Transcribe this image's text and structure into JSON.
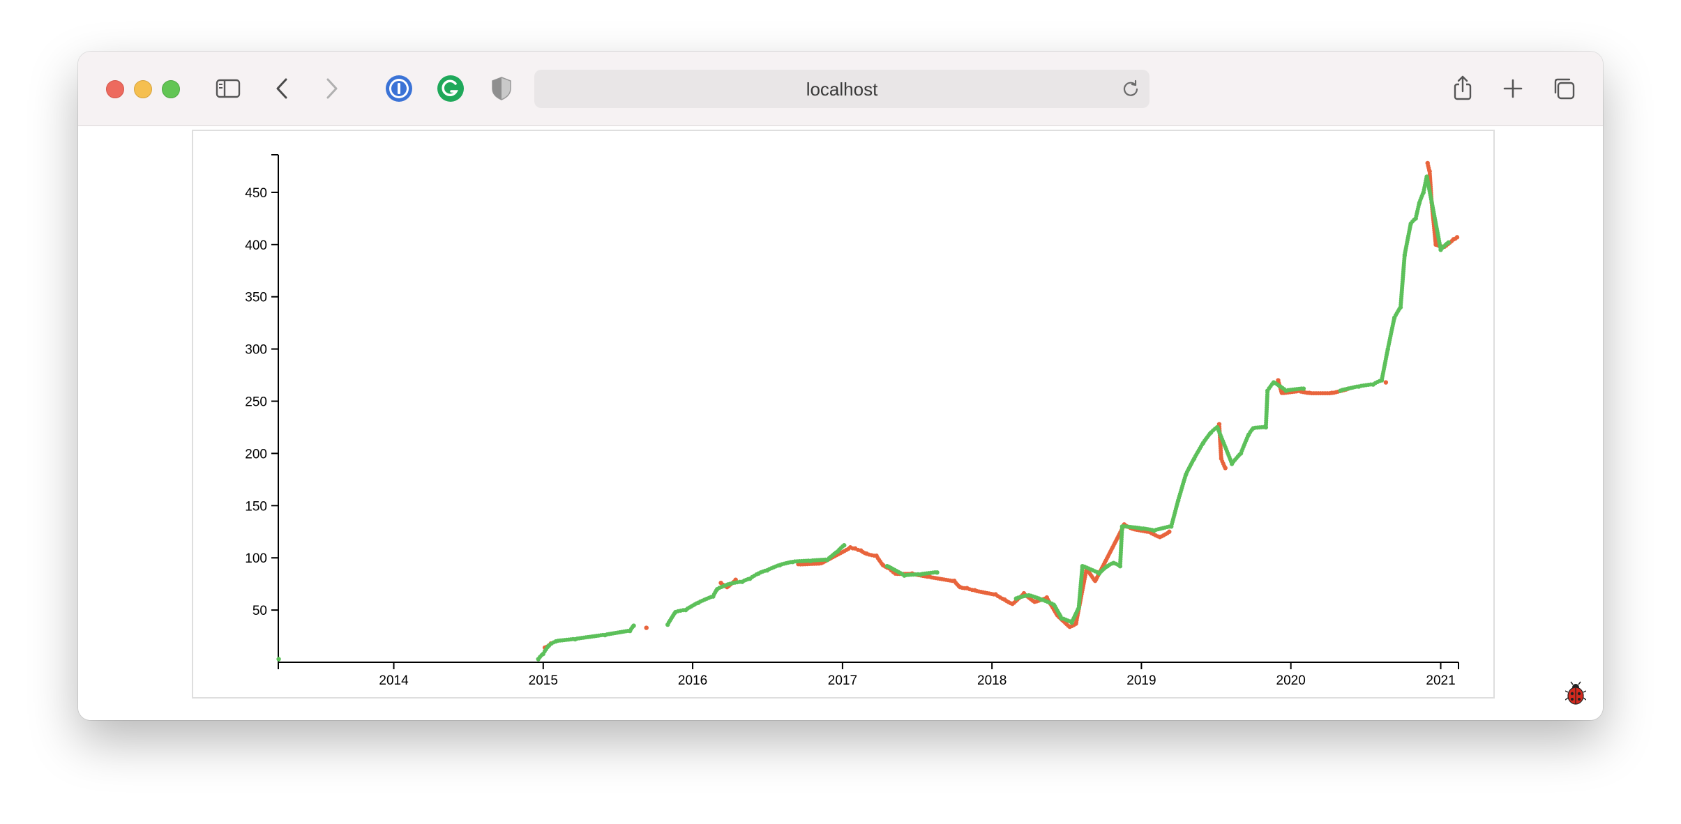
{
  "browser": {
    "url": "localhost",
    "icons": [
      "sidebar-icon",
      "back-icon",
      "forward-icon",
      "onepassword-icon",
      "grammarly-icon",
      "privacy-shield-icon",
      "reload-icon",
      "share-icon",
      "new-tab-icon",
      "tab-overview-icon",
      "ladybug-icon"
    ],
    "colors": {
      "toolbar": "#f6f2f3",
      "onepassword": "#3b73d6",
      "grammarly": "#1fa85a"
    }
  },
  "chart_data": {
    "type": "scatter",
    "title": "",
    "xlabel": "",
    "ylabel": "",
    "xlim": [
      "2013-03-25",
      "2021-02-10"
    ],
    "ylim": [
      0,
      482
    ],
    "x_ticks": [
      "2014",
      "2015",
      "2016",
      "2017",
      "2018",
      "2019",
      "2020",
      "2021"
    ],
    "y_ticks": [
      "50",
      "100",
      "150",
      "200",
      "250",
      "300",
      "350",
      "400",
      "450"
    ],
    "grid": false,
    "legend": "none",
    "series": [
      {
        "color": "#e8643c",
        "points": [
          [
            "2015-01-05",
            14
          ],
          [
            "2015-01-20",
            18
          ],
          [
            "2015-09-10",
            33
          ],
          [
            "2016-03-10",
            76
          ],
          [
            "2016-03-25",
            72
          ],
          [
            "2016-04-15",
            79
          ],
          [
            "2016-09-15",
            94
          ],
          [
            "2016-11-10",
            95
          ],
          [
            "2017-01-20",
            110
          ],
          [
            "2017-02-01",
            109
          ],
          [
            "2017-02-15",
            107
          ],
          [
            "2017-03-01",
            104
          ],
          [
            "2017-03-25",
            102
          ],
          [
            "2017-04-10",
            93
          ],
          [
            "2017-04-25",
            90
          ],
          [
            "2017-05-10",
            85
          ],
          [
            "2017-06-20",
            85
          ],
          [
            "2017-08-01",
            82
          ],
          [
            "2017-10-01",
            78
          ],
          [
            "2017-10-15",
            72
          ],
          [
            "2017-11-01",
            71
          ],
          [
            "2017-11-20",
            69
          ],
          [
            "2018-01-10",
            65
          ],
          [
            "2018-02-01",
            60
          ],
          [
            "2018-02-20",
            56
          ],
          [
            "2018-03-20",
            66
          ],
          [
            "2018-04-15",
            58
          ],
          [
            "2018-05-15",
            62
          ],
          [
            "2018-06-10",
            45
          ],
          [
            "2018-07-10",
            34
          ],
          [
            "2018-07-25",
            37
          ],
          [
            "2018-08-20",
            90
          ],
          [
            "2018-09-10",
            78
          ],
          [
            "2018-11-20",
            132
          ],
          [
            "2018-12-10",
            128
          ],
          [
            "2019-01-20",
            125
          ],
          [
            "2019-02-15",
            120
          ],
          [
            "2019-03-10",
            125
          ],
          [
            "2019-07-10",
            228
          ],
          [
            "2019-07-15",
            195
          ],
          [
            "2019-07-25",
            186
          ],
          [
            "2019-12-01",
            270
          ],
          [
            "2019-12-10",
            258
          ],
          [
            "2020-01-20",
            260
          ],
          [
            "2020-02-15",
            258
          ],
          [
            "2020-04-10",
            258
          ],
          [
            "2020-05-20",
            262
          ],
          [
            "2020-08-20",
            268
          ],
          [
            "2020-11-30",
            478
          ],
          [
            "2020-12-05",
            470
          ],
          [
            "2020-12-10",
            440
          ],
          [
            "2020-12-20",
            400
          ],
          [
            "2021-01-10",
            398
          ],
          [
            "2021-02-01",
            405
          ],
          [
            "2021-02-10",
            407
          ]
        ]
      },
      {
        "color": "#5cc05a",
        "points": [
          [
            "2013-03-26",
            3
          ],
          [
            "2014-12-20",
            3
          ],
          [
            "2015-01-01",
            8
          ],
          [
            "2015-01-15",
            16
          ],
          [
            "2015-02-01",
            20
          ],
          [
            "2015-03-20",
            22
          ],
          [
            "2015-06-01",
            26
          ],
          [
            "2015-08-01",
            30
          ],
          [
            "2015-08-10",
            35
          ],
          [
            "2015-11-01",
            36
          ],
          [
            "2015-11-20",
            48
          ],
          [
            "2015-12-15",
            50
          ],
          [
            "2016-01-15",
            57
          ],
          [
            "2016-02-20",
            63
          ],
          [
            "2016-03-01",
            70
          ],
          [
            "2016-04-01",
            75
          ],
          [
            "2016-05-01",
            77
          ],
          [
            "2016-05-20",
            80
          ],
          [
            "2016-06-10",
            85
          ],
          [
            "2016-07-01",
            88
          ],
          [
            "2016-08-01",
            93
          ],
          [
            "2016-09-01",
            96
          ],
          [
            "2016-10-15",
            97
          ],
          [
            "2016-11-25",
            98
          ],
          [
            "2016-12-20",
            106
          ],
          [
            "2017-01-05",
            112
          ],
          [
            "2017-04-20",
            92
          ],
          [
            "2017-06-01",
            83
          ],
          [
            "2017-07-10",
            84
          ],
          [
            "2017-08-20",
            86
          ],
          [
            "2018-03-01",
            61
          ],
          [
            "2018-04-01",
            64
          ],
          [
            "2018-05-01",
            60
          ],
          [
            "2018-06-01",
            55
          ],
          [
            "2018-06-20",
            42
          ],
          [
            "2018-07-15",
            38
          ],
          [
            "2018-08-01",
            52
          ],
          [
            "2018-08-10",
            92
          ],
          [
            "2018-09-20",
            85
          ],
          [
            "2018-10-10",
            92
          ],
          [
            "2018-10-25",
            95
          ],
          [
            "2018-11-10",
            92
          ],
          [
            "2018-11-15",
            130
          ],
          [
            "2019-01-01",
            128
          ],
          [
            "2019-02-01",
            126
          ],
          [
            "2019-03-15",
            130
          ],
          [
            "2019-04-01",
            155
          ],
          [
            "2019-04-20",
            180
          ],
          [
            "2019-05-10",
            195
          ],
          [
            "2019-06-01",
            210
          ],
          [
            "2019-06-20",
            220
          ],
          [
            "2019-07-05",
            225
          ],
          [
            "2019-08-10",
            190
          ],
          [
            "2019-09-01",
            200
          ],
          [
            "2019-09-20",
            218
          ],
          [
            "2019-10-01",
            224
          ],
          [
            "2019-11-01",
            225
          ],
          [
            "2019-11-05",
            260
          ],
          [
            "2019-11-20",
            268
          ],
          [
            "2019-12-20",
            260
          ],
          [
            "2020-02-01",
            262
          ],
          [
            "2020-05-01",
            260
          ],
          [
            "2020-06-15",
            264
          ],
          [
            "2020-07-20",
            266
          ],
          [
            "2020-08-10",
            270
          ],
          [
            "2020-08-25",
            300
          ],
          [
            "2020-09-10",
            330
          ],
          [
            "2020-09-25",
            340
          ],
          [
            "2020-10-05",
            390
          ],
          [
            "2020-10-20",
            420
          ],
          [
            "2020-11-01",
            425
          ],
          [
            "2020-11-10",
            440
          ],
          [
            "2020-11-20",
            450
          ],
          [
            "2020-11-28",
            465
          ],
          [
            "2021-01-01",
            395
          ],
          [
            "2021-01-20",
            402
          ]
        ]
      }
    ]
  }
}
